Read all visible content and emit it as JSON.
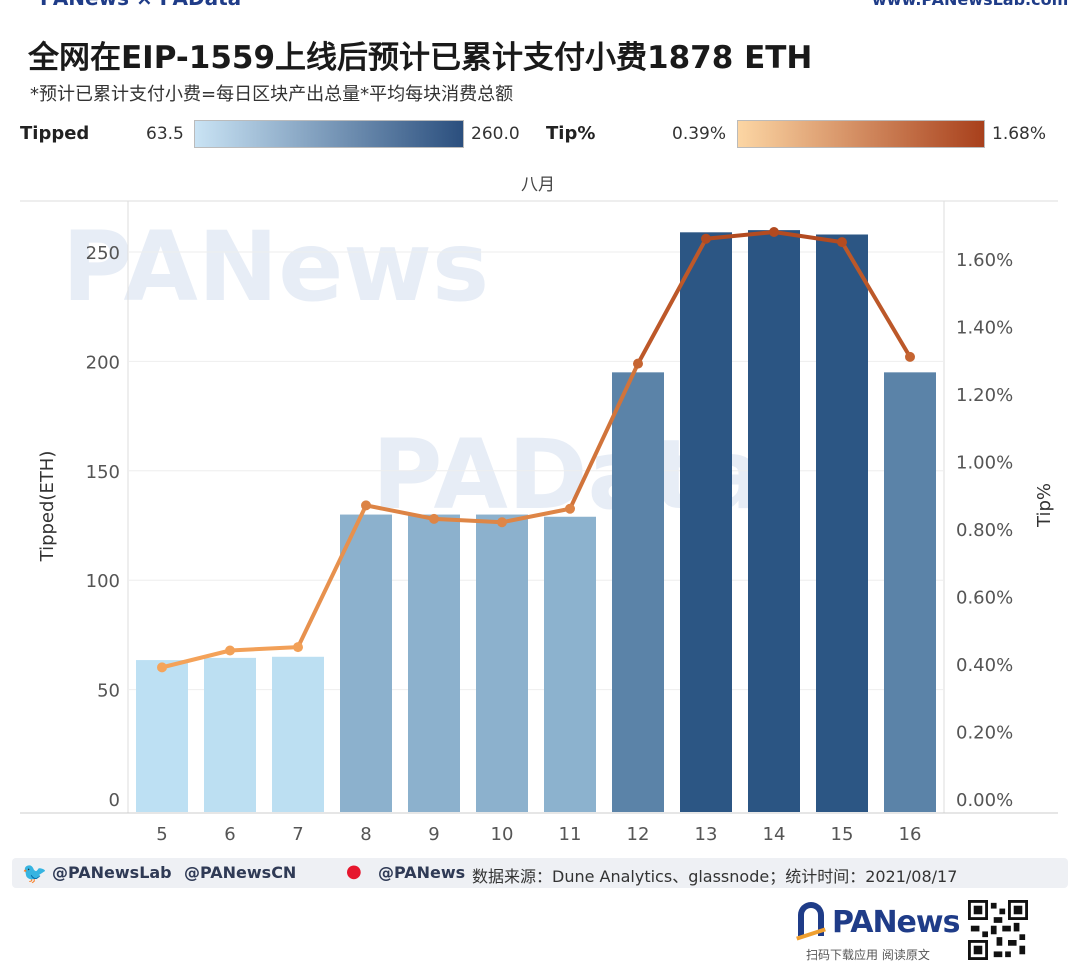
{
  "header": {
    "logo_left": "PANews × PAData",
    "url_right": "www.PANewsLab.com"
  },
  "title": "全网在EIP-1559上线后预计已累计支付小费1878 ETH",
  "subtitle": "*预计已累计支付小费=每日区块产出总量*平均每块消费总额",
  "legend": {
    "tipped_label": "Tipped",
    "tipped_min": "63.5",
    "tipped_max": "260.0",
    "tip_label": "Tip%",
    "tip_min": "0.39%",
    "tip_max": "1.68%",
    "tipped_gradient": [
      "#c9e3f4",
      "#2b4f7e"
    ],
    "tip_gradient": [
      "#fcd6a4",
      "#a8401c"
    ]
  },
  "watermarks": [
    "PANews",
    "PAData"
  ],
  "chart_data": {
    "type": "bar",
    "title": "全网在EIP-1559上线后预计已累计支付小费1878 ETH",
    "column_header": "八月",
    "categories": [
      "5",
      "6",
      "7",
      "8",
      "9",
      "10",
      "11",
      "12",
      "13",
      "14",
      "15",
      "16"
    ],
    "series": [
      {
        "name": "Tipped",
        "type": "bar",
        "axis": "left",
        "values": [
          63.5,
          64.5,
          65,
          130,
          130,
          130,
          129,
          195,
          259,
          260,
          258,
          195
        ]
      },
      {
        "name": "Tip%",
        "type": "line",
        "axis": "right",
        "values": [
          0.39,
          0.44,
          0.45,
          0.87,
          0.83,
          0.82,
          0.86,
          1.29,
          1.66,
          1.68,
          1.65,
          1.31
        ]
      }
    ],
    "ylabel": "Tipped(ETH)",
    "ylabel_right": "Tip%",
    "ylim": [
      0,
      270
    ],
    "ylim_right": [
      0,
      1.76
    ],
    "yticks": [
      0,
      50,
      100,
      150,
      200,
      250
    ],
    "yticks_right": [
      "0.00%",
      "0.20%",
      "0.40%",
      "0.60%",
      "0.80%",
      "1.00%",
      "1.20%",
      "1.40%",
      "1.60%"
    ],
    "yticks_right_values": [
      0,
      0.2,
      0.4,
      0.6,
      0.8,
      1.0,
      1.2,
      1.4,
      1.6
    ],
    "grid": true
  },
  "footer": {
    "twitter1": "@PANewsLab",
    "twitter2": "@PANewsCN",
    "weibo": "@PANews",
    "source": "数据来源：Dune Analytics、glassnode；统计时间：2021/08/17"
  },
  "brand": {
    "name": "PANews",
    "sub": "扫码下载应用  阅读原文"
  },
  "colors": {
    "bar_light": "#bde0f3",
    "bar_dark": "#2b5583",
    "line_light": "#f5a45a",
    "line_dark": "#b24a20"
  }
}
